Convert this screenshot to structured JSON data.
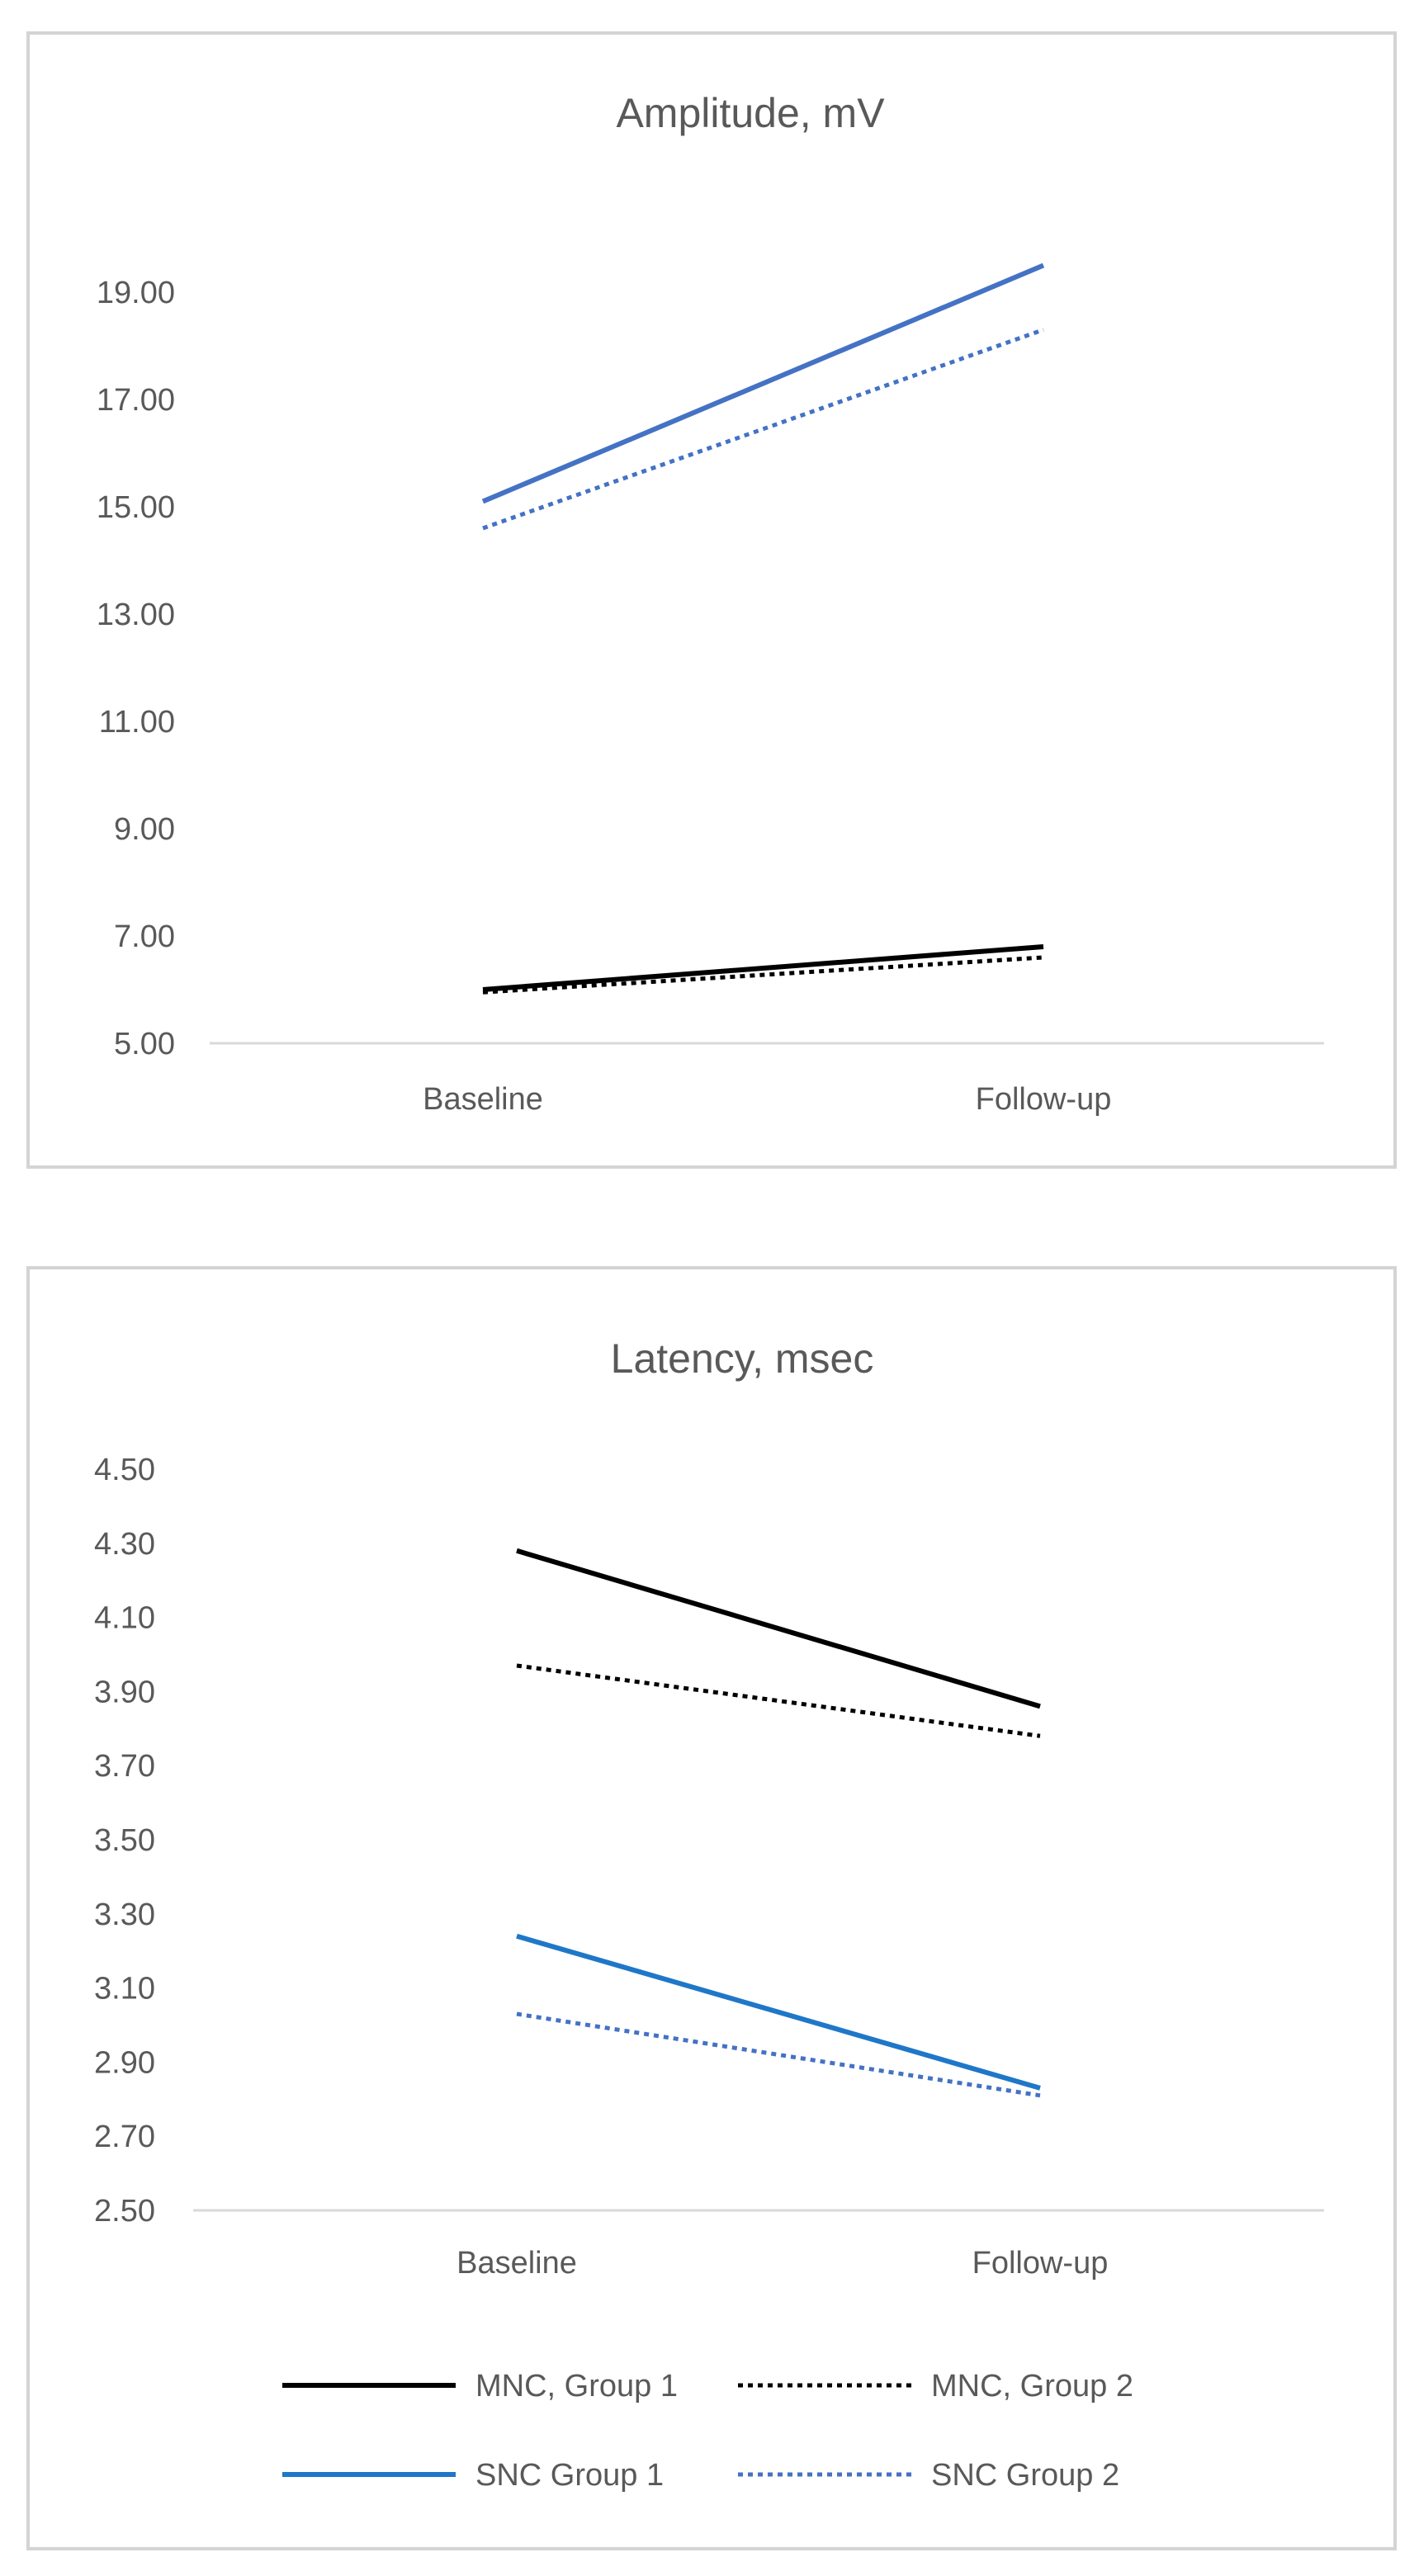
{
  "chart_data": [
    {
      "type": "line",
      "title": "Amplitude, mV",
      "xlabel": "",
      "ylabel": "",
      "categories": [
        "Baseline",
        "Follow-up"
      ],
      "ylim": [
        5.0,
        19.0
      ],
      "yticks": [
        "5.00",
        "7.00",
        "9.00",
        "11.00",
        "13.00",
        "15.00",
        "17.00",
        "19.00"
      ],
      "series": [
        {
          "name": "MNC, Group 1",
          "values": [
            6.0,
            6.8
          ],
          "color": "#000000",
          "dash": "solid"
        },
        {
          "name": "MNC, Group 2",
          "values": [
            5.95,
            6.6
          ],
          "color": "#000000",
          "dash": "dotted"
        },
        {
          "name": "SNC Group 1",
          "values": [
            15.1,
            19.5
          ],
          "color": "#4472C4",
          "dash": "solid"
        },
        {
          "name": "SNC Group 2",
          "values": [
            14.6,
            18.3
          ],
          "color": "#4472C4",
          "dash": "dotted"
        }
      ],
      "grid": false,
      "legend": "none"
    },
    {
      "type": "line",
      "title": "Latency, msec",
      "xlabel": "",
      "ylabel": "",
      "categories": [
        "Baseline",
        "Follow-up"
      ],
      "ylim": [
        2.5,
        4.5
      ],
      "yticks": [
        "2.50",
        "2.70",
        "2.90",
        "3.10",
        "3.30",
        "3.50",
        "3.70",
        "3.90",
        "4.10",
        "4.30",
        "4.50"
      ],
      "series": [
        {
          "name": "MNC, Group 1",
          "values": [
            4.28,
            3.86
          ],
          "color": "#000000",
          "dash": "solid"
        },
        {
          "name": "MNC, Group 2",
          "values": [
            3.97,
            3.78
          ],
          "color": "#000000",
          "dash": "dotted"
        },
        {
          "name": "SNC Group 1",
          "values": [
            3.24,
            2.83
          ],
          "color": "#1f77c8",
          "dash": "solid"
        },
        {
          "name": "SNC Group 2",
          "values": [
            3.03,
            2.81
          ],
          "color": "#4472C4",
          "dash": "dotted"
        }
      ],
      "grid": false,
      "legend": "bottom"
    }
  ]
}
